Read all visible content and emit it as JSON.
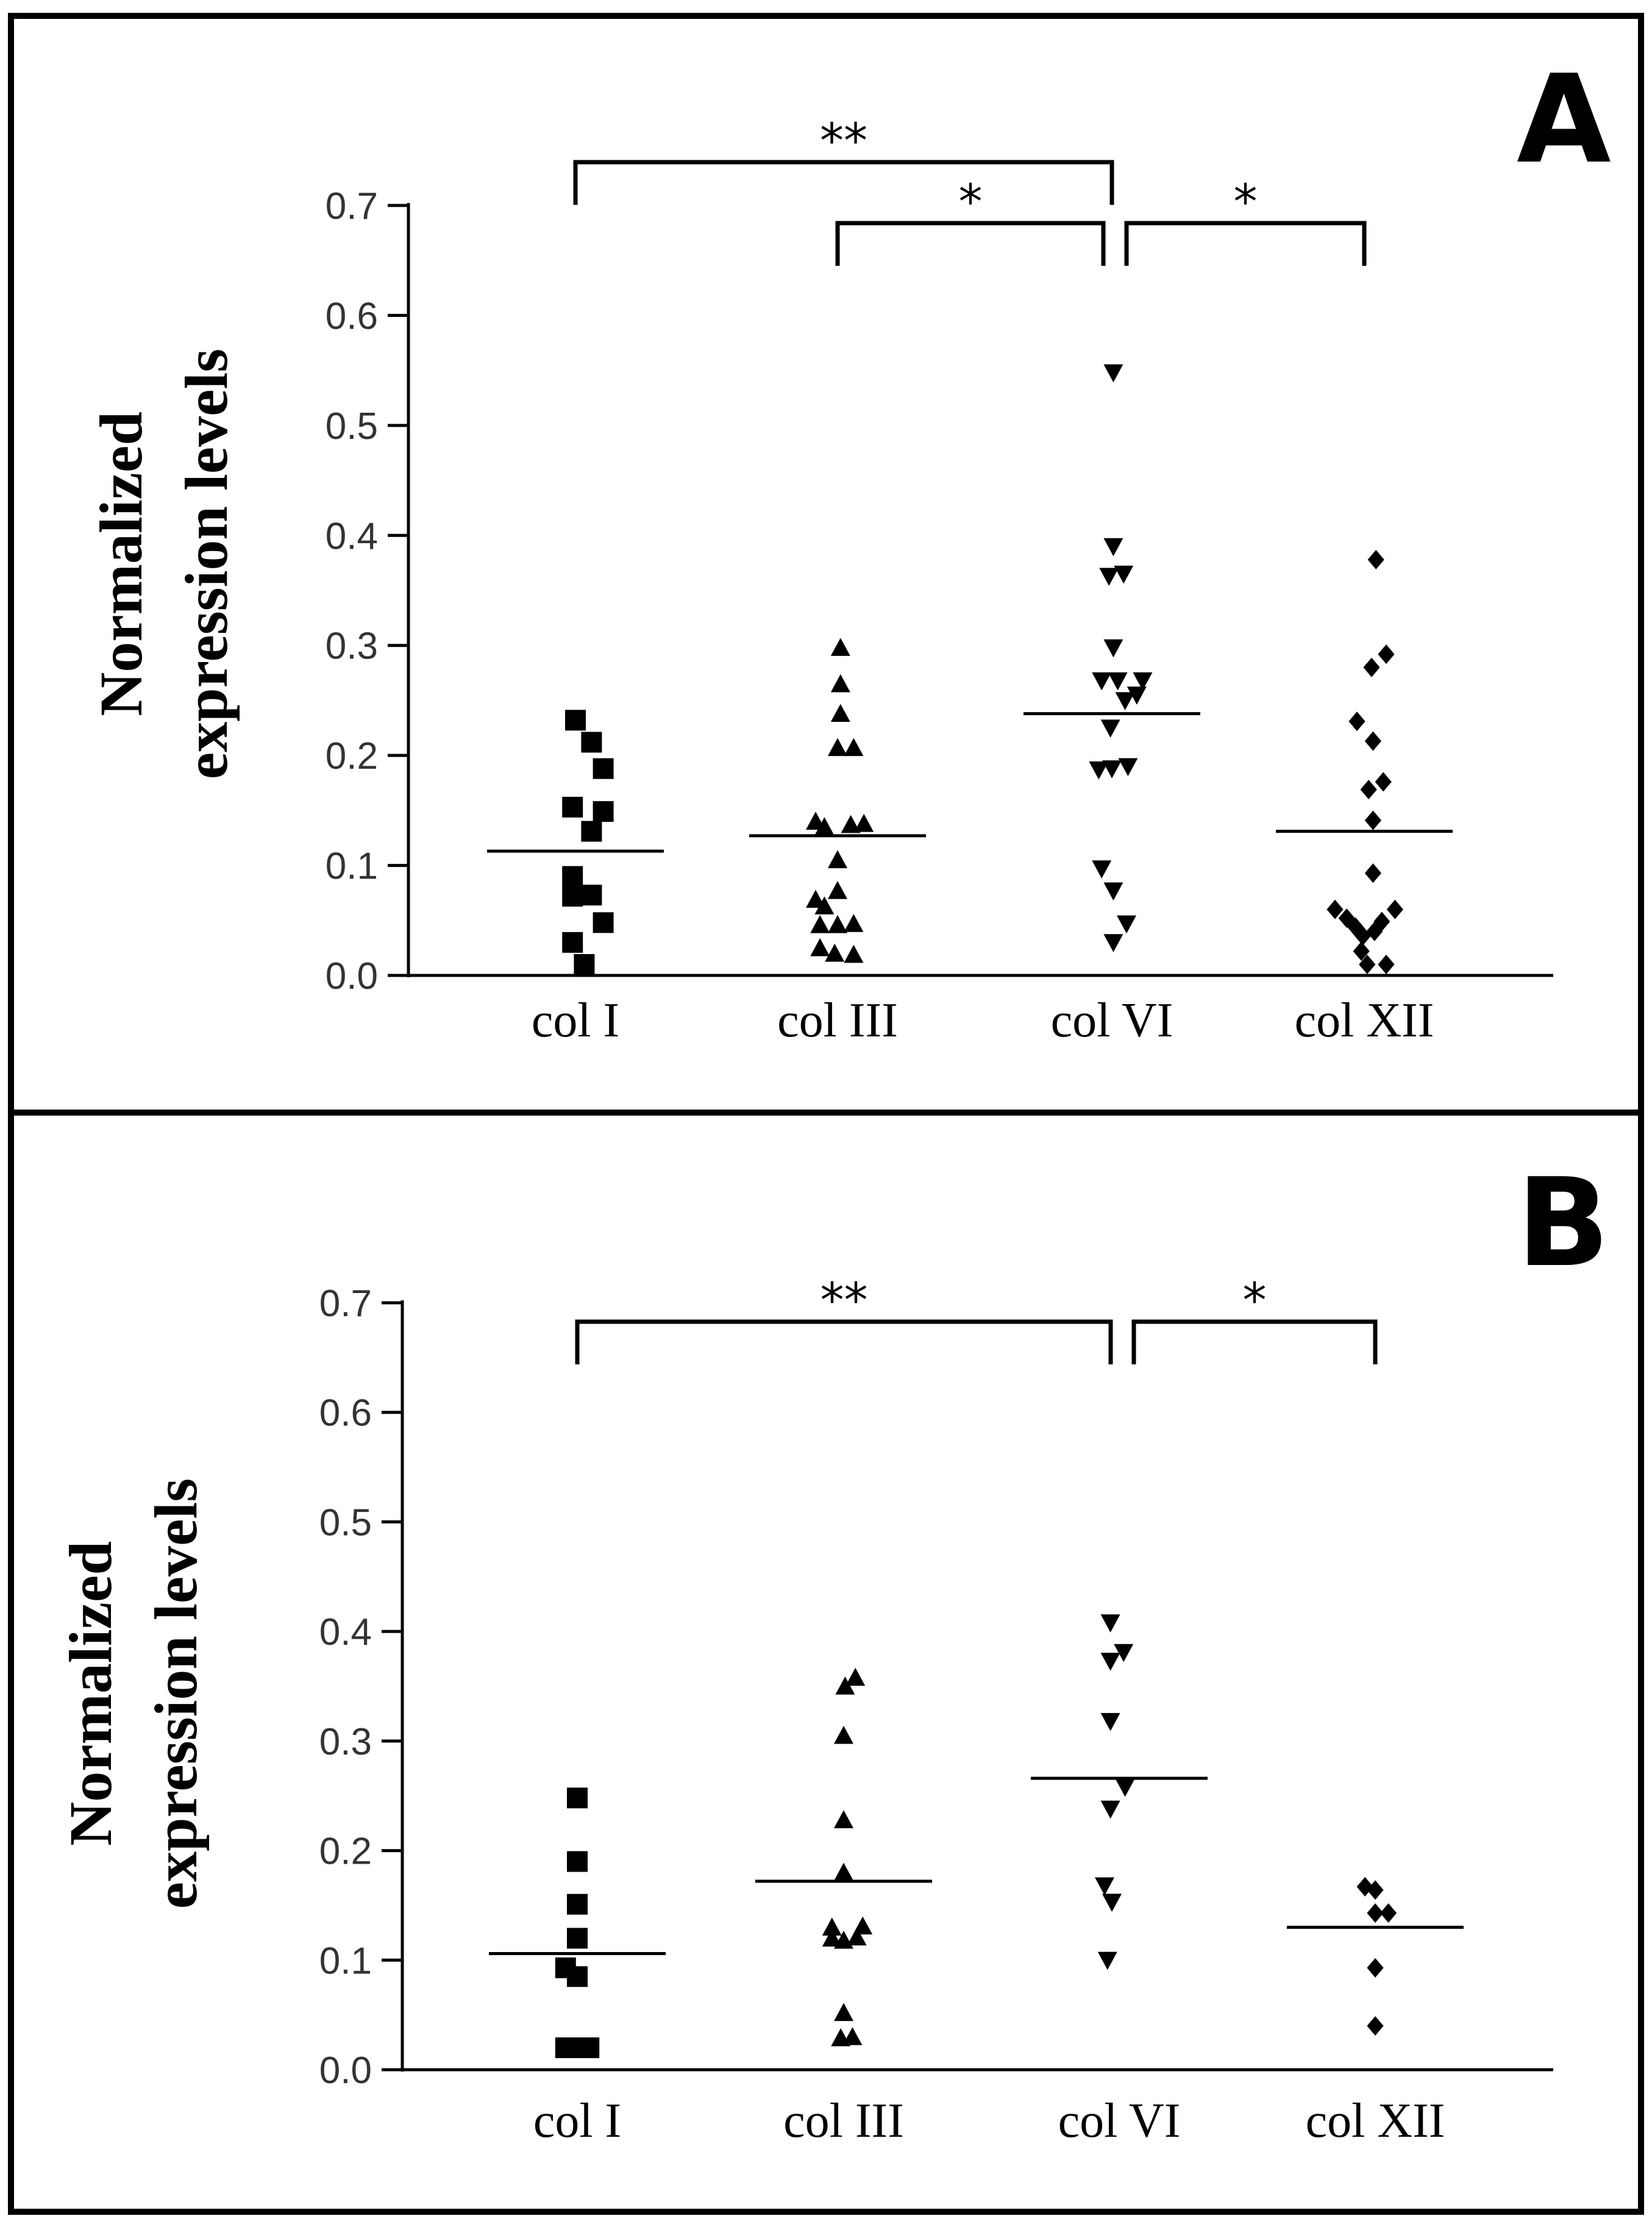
{
  "colors": {
    "ink": "#000000",
    "tick_text": "#333333",
    "background": "#ffffff"
  },
  "chart_data": [
    {
      "type": "scatter",
      "panel": "A",
      "ylabel_lines": [
        "Normalized",
        "expression levels"
      ],
      "ylim": [
        0.0,
        0.7
      ],
      "yticks": [
        "0.0",
        "0.1",
        "0.2",
        "0.3",
        "0.4",
        "0.5",
        "0.6",
        "0.7"
      ],
      "categories": [
        "col I",
        "col III",
        "col VI",
        "col XII"
      ],
      "series": [
        {
          "name": "col I",
          "marker": "square",
          "mean": 0.113,
          "points": [
            [
              0,
              0.232
            ],
            [
              0.55,
              0.212
            ],
            [
              0.95,
              0.188
            ],
            [
              -0.1,
              0.153
            ],
            [
              0.95,
              0.149
            ],
            [
              0.55,
              0.131
            ],
            [
              -0.1,
              0.09
            ],
            [
              0.55,
              0.073
            ],
            [
              -0.1,
              0.072
            ],
            [
              0.95,
              0.048
            ],
            [
              -0.1,
              0.03
            ],
            [
              0.3,
              0.01
            ]
          ]
        },
        {
          "name": "col III",
          "marker": "triangle-up",
          "mean": 0.127,
          "points": [
            [
              0.1,
              0.298
            ],
            [
              0.1,
              0.265
            ],
            [
              0.1,
              0.238
            ],
            [
              0.0,
              0.207
            ],
            [
              0.55,
              0.207
            ],
            [
              -0.75,
              0.14
            ],
            [
              -0.45,
              0.135
            ],
            [
              0.45,
              0.137
            ],
            [
              0.9,
              0.138
            ],
            [
              0.0,
              0.105
            ],
            [
              -0.75,
              0.069
            ],
            [
              0.0,
              0.077
            ],
            [
              -0.45,
              0.063
            ],
            [
              -0.6,
              0.046
            ],
            [
              0.0,
              0.046
            ],
            [
              0.55,
              0.047
            ],
            [
              -0.6,
              0.025
            ],
            [
              -0.1,
              0.02
            ],
            [
              0.55,
              0.019
            ]
          ]
        },
        {
          "name": "col VI",
          "marker": "triangle-down",
          "mean": 0.238,
          "points": [
            [
              0.05,
              0.548
            ],
            [
              0.05,
              0.39
            ],
            [
              -0.1,
              0.363
            ],
            [
              0.4,
              0.365
            ],
            [
              0.05,
              0.298
            ],
            [
              -0.35,
              0.268
            ],
            [
              0.2,
              0.268
            ],
            [
              1.05,
              0.268
            ],
            [
              0.45,
              0.25
            ],
            [
              0.85,
              0.255
            ],
            [
              -0.05,
              0.225
            ],
            [
              -0.45,
              0.187
            ],
            [
              0.0,
              0.188
            ],
            [
              0.55,
              0.19
            ],
            [
              -0.35,
              0.097
            ],
            [
              0.05,
              0.077
            ],
            [
              0.5,
              0.047
            ],
            [
              0.05,
              0.03
            ]
          ]
        },
        {
          "name": "col XII",
          "marker": "diamond",
          "mean": 0.131,
          "points": [
            [
              0.4,
              0.378
            ],
            [
              0.25,
              0.28
            ],
            [
              0.75,
              0.292
            ],
            [
              -0.25,
              0.231
            ],
            [
              0.3,
              0.213
            ],
            [
              0.15,
              0.169
            ],
            [
              0.65,
              0.176
            ],
            [
              0.3,
              0.141
            ],
            [
              0.3,
              0.093
            ],
            [
              -1.0,
              0.06
            ],
            [
              -0.6,
              0.052
            ],
            [
              -0.3,
              0.044
            ],
            [
              -0.05,
              0.036
            ],
            [
              0.6,
              0.049
            ],
            [
              1.05,
              0.06
            ],
            [
              0.35,
              0.04
            ],
            [
              -0.1,
              0.022
            ],
            [
              0.1,
              0.01
            ],
            [
              0.75,
              0.01
            ]
          ]
        }
      ],
      "brackets": [
        {
          "from": 0,
          "to": 2,
          "label": "**",
          "level": 0
        },
        {
          "from": 1,
          "to": 2,
          "label": "*",
          "level": 1
        },
        {
          "from": 2,
          "to": 3,
          "label": "*",
          "level": 1
        }
      ]
    },
    {
      "type": "scatter",
      "panel": "B",
      "ylabel_lines": [
        "Normalized",
        "expression levels"
      ],
      "ylim": [
        0.0,
        0.7
      ],
      "yticks": [
        "0.0",
        "0.1",
        "0.2",
        "0.3",
        "0.4",
        "0.5",
        "0.6",
        "0.7"
      ],
      "categories": [
        "col I",
        "col III",
        "col VI",
        "col XII"
      ],
      "series": [
        {
          "name": "col I",
          "marker": "square",
          "mean": 0.106,
          "points": [
            [
              0,
              0.248
            ],
            [
              0,
              0.19
            ],
            [
              0,
              0.151
            ],
            [
              0,
              0.12
            ],
            [
              -0.4,
              0.093
            ],
            [
              0,
              0.085
            ],
            [
              -0.4,
              0.02
            ],
            [
              0,
              0.02
            ],
            [
              0.4,
              0.02
            ]
          ]
        },
        {
          "name": "col III",
          "marker": "triangle-up",
          "mean": 0.172,
          "points": [
            [
              0.4,
              0.358
            ],
            [
              0.05,
              0.35
            ],
            [
              0.0,
              0.305
            ],
            [
              0.0,
              0.228
            ],
            [
              0.0,
              0.18
            ],
            [
              -0.4,
              0.13
            ],
            [
              0.65,
              0.131
            ],
            [
              -0.4,
              0.12
            ],
            [
              0.0,
              0.118
            ],
            [
              0.45,
              0.121
            ],
            [
              0.0,
              0.052
            ],
            [
              -0.1,
              0.029
            ],
            [
              0.3,
              0.03
            ]
          ]
        },
        {
          "name": "col VI",
          "marker": "triangle-down",
          "mean": 0.266,
          "points": [
            [
              -0.3,
              0.408
            ],
            [
              -0.3,
              0.373
            ],
            [
              0.15,
              0.381
            ],
            [
              -0.3,
              0.318
            ],
            [
              0.2,
              0.258
            ],
            [
              -0.3,
              0.238
            ],
            [
              -0.5,
              0.168
            ],
            [
              -0.25,
              0.153
            ],
            [
              -0.4,
              0.1
            ]
          ]
        },
        {
          "name": "col XII",
          "marker": "diamond",
          "mean": 0.13,
          "points": [
            [
              -0.35,
              0.167
            ],
            [
              0.0,
              0.164
            ],
            [
              0.0,
              0.143
            ],
            [
              0.45,
              0.143
            ],
            [
              0.0,
              0.093
            ],
            [
              0.0,
              0.04
            ]
          ]
        }
      ],
      "brackets": [
        {
          "from": 0,
          "to": 2,
          "label": "**",
          "level": 0
        },
        {
          "from": 2,
          "to": 3,
          "label": "*",
          "level": 0
        }
      ]
    }
  ]
}
